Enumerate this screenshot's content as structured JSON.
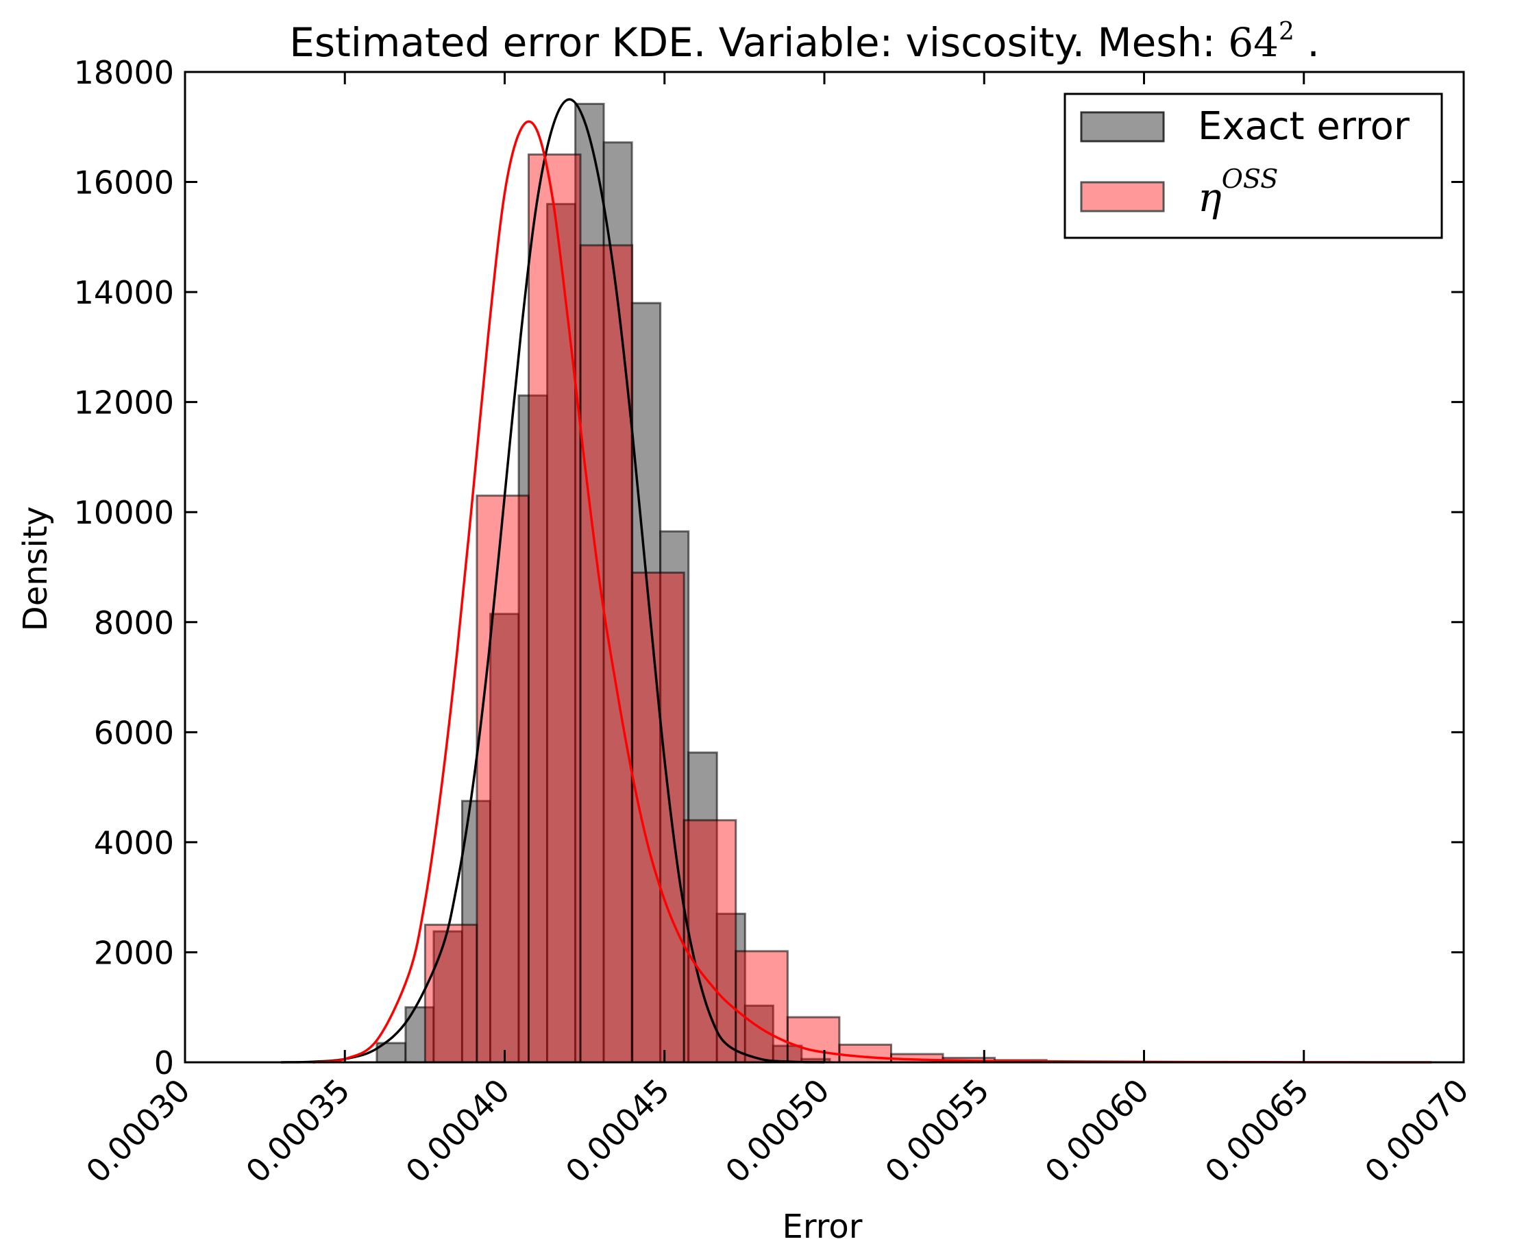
{
  "chart_data": {
    "type": "bar",
    "title_prefix": "Estimated error KDE. Variable: viscosity. Mesh: ",
    "title_math_base": "64",
    "title_math_sup": "2",
    "title_suffix": " .",
    "xlabel": "Error",
    "ylabel": "Density",
    "xlim": [
      0.0003,
      0.0007
    ],
    "ylim": [
      0,
      18000
    ],
    "xticks": [
      0.0003,
      0.00035,
      0.0004,
      0.00045,
      0.0005,
      0.00055,
      0.0006,
      0.00065,
      0.0007
    ],
    "xtick_labels": [
      "0.00030",
      "0.00035",
      "0.00040",
      "0.00045",
      "0.00050",
      "0.00055",
      "0.00060",
      "0.00065",
      "0.00070"
    ],
    "yticks": [
      0,
      2000,
      4000,
      6000,
      8000,
      10000,
      12000,
      14000,
      16000,
      18000
    ],
    "ytick_labels": [
      "0",
      "2000",
      "4000",
      "6000",
      "8000",
      "10000",
      "12000",
      "14000",
      "16000",
      "18000"
    ],
    "legend_position": "top-right",
    "series": [
      {
        "name": "Exact error",
        "kind": "histogram",
        "fill": "#808080",
        "edge": "#000000",
        "kde_color": "#000000",
        "bins": [
          {
            "x0": 0.00036,
            "x1": 0.000369,
            "value": 350
          },
          {
            "x0": 0.000369,
            "x1": 0.0003778,
            "value": 1000
          },
          {
            "x0": 0.0003778,
            "x1": 0.0003867,
            "value": 2380
          },
          {
            "x0": 0.0003867,
            "x1": 0.0003955,
            "value": 4750
          },
          {
            "x0": 0.0003955,
            "x1": 0.0004044,
            "value": 8150
          },
          {
            "x0": 0.0004044,
            "x1": 0.0004133,
            "value": 12120
          },
          {
            "x0": 0.0004133,
            "x1": 0.0004221,
            "value": 15600
          },
          {
            "x0": 0.0004221,
            "x1": 0.000431,
            "value": 17420
          },
          {
            "x0": 0.000431,
            "x1": 0.0004398,
            "value": 16720
          },
          {
            "x0": 0.0004398,
            "x1": 0.0004487,
            "value": 13800
          },
          {
            "x0": 0.0004487,
            "x1": 0.0004575,
            "value": 9650
          },
          {
            "x0": 0.0004575,
            "x1": 0.0004664,
            "value": 5630
          },
          {
            "x0": 0.0004664,
            "x1": 0.0004752,
            "value": 2700
          },
          {
            "x0": 0.0004752,
            "x1": 0.000484,
            "value": 1030
          },
          {
            "x0": 0.000484,
            "x1": 0.0004929,
            "value": 300
          },
          {
            "x0": 0.0004929,
            "x1": 0.0005017,
            "value": 60
          }
        ],
        "kde": {
          "x": [
            0.00033,
            0.00034,
            0.00035,
            0.00036,
            0.00037,
            0.00038,
            0.000385,
            0.00039,
            0.000395,
            0.0004,
            0.000405,
            0.00041,
            0.000415,
            0.00042,
            0.000425,
            0.00043,
            0.000435,
            0.00044,
            0.000445,
            0.00045,
            0.000455,
            0.00046,
            0.000465,
            0.00047,
            0.00048,
            0.00049,
            0.0005
          ],
          "y": [
            0,
            10,
            60,
            250,
            800,
            2000,
            3200,
            5000,
            7400,
            10300,
            13200,
            15600,
            17000,
            17500,
            17100,
            15900,
            14000,
            11400,
            8400,
            5500,
            3200,
            1700,
            750,
            300,
            60,
            10,
            0
          ]
        }
      },
      {
        "name": "η^OSS",
        "legend_base": "η",
        "legend_sup": "OSS",
        "kind": "histogram",
        "fill": "#ff0000",
        "fill_opacity": 0.4,
        "edge": "#000000",
        "kde_color": "#ff0000",
        "bins": [
          {
            "x0": 0.0003751,
            "x1": 0.0003913,
            "value": 2500
          },
          {
            "x0": 0.0003913,
            "x1": 0.0004075,
            "value": 10300
          },
          {
            "x0": 0.0004075,
            "x1": 0.0004237,
            "value": 16500
          },
          {
            "x0": 0.0004237,
            "x1": 0.0004399,
            "value": 14850
          },
          {
            "x0": 0.0004399,
            "x1": 0.0004561,
            "value": 8900
          },
          {
            "x0": 0.0004561,
            "x1": 0.0004723,
            "value": 4400
          },
          {
            "x0": 0.0004723,
            "x1": 0.0004885,
            "value": 2020
          },
          {
            "x0": 0.0004885,
            "x1": 0.0005047,
            "value": 820
          },
          {
            "x0": 0.0005047,
            "x1": 0.0005209,
            "value": 320
          },
          {
            "x0": 0.0005209,
            "x1": 0.0005371,
            "value": 150
          },
          {
            "x0": 0.0005371,
            "x1": 0.0005533,
            "value": 80
          },
          {
            "x0": 0.0005533,
            "x1": 0.0005695,
            "value": 40
          }
        ],
        "kde": {
          "x": [
            0.00034,
            0.00035,
            0.00036,
            0.00037,
            0.000375,
            0.00038,
            0.000385,
            0.00039,
            0.000395,
            0.0004,
            0.000405,
            0.00041,
            0.000415,
            0.00042,
            0.000425,
            0.00043,
            0.000435,
            0.00044,
            0.000445,
            0.00045,
            0.000455,
            0.00046,
            0.000465,
            0.00047,
            0.00048,
            0.00049,
            0.0005,
            0.00052,
            0.00055,
            0.0006,
            0.00065,
            0.00069
          ],
          "y": [
            0,
            60,
            400,
            1600,
            2900,
            4900,
            7400,
            10300,
            13300,
            15800,
            16950,
            16950,
            15700,
            13400,
            10900,
            8600,
            6800,
            5200,
            3900,
            2950,
            2250,
            1750,
            1380,
            1070,
            620,
            330,
            180,
            70,
            25,
            8,
            2,
            0
          ]
        }
      }
    ]
  }
}
